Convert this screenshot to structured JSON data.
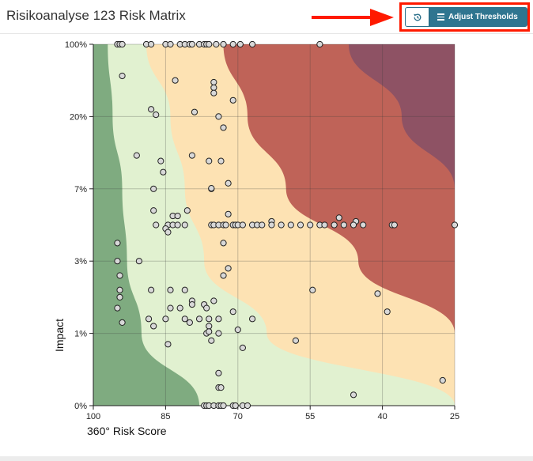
{
  "header": {
    "title": "Risikoanalyse 123 Risk Matrix",
    "history_icon": "history-icon",
    "adjust_label": "Adjust Thresholds",
    "adjust_icon": "sliders-icon"
  },
  "colors": {
    "zone_1": "#7fab80",
    "zone_2": "#e1f1d0",
    "zone_3": "#fde2b3",
    "zone_4": "#bf6358",
    "zone_5": "#8e5264",
    "point_fill": "#d8d8d8",
    "accent": "#2f7590",
    "callout": "#ff1a00"
  },
  "chart_data": {
    "type": "scatter",
    "xlabel": "360° Risk Score",
    "ylabel": "Impact",
    "xlim": [
      100,
      25
    ],
    "x_reversed": true,
    "xticks": [
      100,
      85,
      70,
      55,
      40,
      25
    ],
    "yticks": [
      "0%",
      "1%",
      "3%",
      "7%",
      "20%",
      "100%"
    ],
    "y_scale": "categorical bands",
    "grid": true,
    "zone_boundaries_risk_score_at_impact": {
      "impact_levels": [
        "0%",
        "1%",
        "3%",
        "7%",
        "20%",
        "100%"
      ],
      "zone_1_2": [
        78,
        90,
        93,
        94,
        96,
        97
      ],
      "zone_2_3": [
        25,
        64,
        77,
        81,
        84,
        89
      ],
      "zone_3_4": [
        25,
        25,
        45,
        60,
        68,
        73
      ],
      "zone_4_5": [
        25,
        25,
        25,
        25,
        36,
        47
      ]
    },
    "points": [
      {
        "x": 95,
        "y": "100%"
      },
      {
        "x": 94.5,
        "y": "100%"
      },
      {
        "x": 94,
        "y": "100%"
      },
      {
        "x": 89,
        "y": "100%"
      },
      {
        "x": 88,
        "y": "100%"
      },
      {
        "x": 85,
        "y": "100%"
      },
      {
        "x": 84,
        "y": "100%"
      },
      {
        "x": 82,
        "y": "100%"
      },
      {
        "x": 81,
        "y": "100%"
      },
      {
        "x": 80,
        "y": "100%"
      },
      {
        "x": 79.5,
        "y": "100%"
      },
      {
        "x": 78,
        "y": "100%"
      },
      {
        "x": 77,
        "y": "100%"
      },
      {
        "x": 76.5,
        "y": "100%"
      },
      {
        "x": 76,
        "y": "100%"
      },
      {
        "x": 74.5,
        "y": "100%"
      },
      {
        "x": 73,
        "y": "100%"
      },
      {
        "x": 71,
        "y": "100%"
      },
      {
        "x": 69.5,
        "y": "100%"
      },
      {
        "x": 67,
        "y": "100%"
      },
      {
        "x": 53,
        "y": "100%"
      },
      {
        "x": 94,
        "y": "65%"
      },
      {
        "x": 83,
        "y": "60%"
      },
      {
        "x": 75,
        "y": "58%"
      },
      {
        "x": 75,
        "y": "52%"
      },
      {
        "x": 75,
        "y": "46%"
      },
      {
        "x": 71,
        "y": "38%"
      },
      {
        "x": 88,
        "y": "28%"
      },
      {
        "x": 87,
        "y": "22%"
      },
      {
        "x": 79,
        "y": "25%"
      },
      {
        "x": 74,
        "y": "20%"
      },
      {
        "x": 73,
        "y": "18%"
      },
      {
        "x": 91,
        "y": "13%"
      },
      {
        "x": 86,
        "y": "12%"
      },
      {
        "x": 85.5,
        "y": "10%"
      },
      {
        "x": 79.5,
        "y": "13%"
      },
      {
        "x": 76,
        "y": "12%"
      },
      {
        "x": 73.5,
        "y": "12%"
      },
      {
        "x": 72,
        "y": "8%"
      },
      {
        "x": 95,
        "y": "4%"
      },
      {
        "x": 94.5,
        "y": "2%"
      },
      {
        "x": 75.5,
        "y": "5%"
      },
      {
        "x": 94,
        "y": "-15%"
      },
      {
        "x": 87.5,
        "y": "-10%"
      },
      {
        "x": 84,
        "y": "-35%"
      },
      {
        "x": 79.5,
        "y": "-45%"
      },
      {
        "x": 75,
        "y": "-45%"
      },
      {
        "x": 81,
        "y": "-60%"
      },
      {
        "x": 87.5,
        "y": "7%"
      },
      {
        "x": 75.5,
        "y": "7%"
      },
      {
        "x": 75.5,
        "y": "7.1%"
      },
      {
        "x": 87.5,
        "y": "5.8%"
      },
      {
        "x": 80.5,
        "y": "5.8%"
      },
      {
        "x": 72,
        "y": "5.6%"
      },
      {
        "x": 63,
        "y": "5.2%"
      },
      {
        "x": 45.5,
        "y": "5.2%"
      },
      {
        "x": 83.5,
        "y": "5.5%"
      },
      {
        "x": 82.5,
        "y": "5.5%"
      },
      {
        "x": 49,
        "y": "5.4%"
      },
      {
        "x": 87,
        "y": "5%"
      },
      {
        "x": 84.5,
        "y": "5%"
      },
      {
        "x": 83.5,
        "y": "5%"
      },
      {
        "x": 82.5,
        "y": "5%"
      },
      {
        "x": 81,
        "y": "5%"
      },
      {
        "x": 75,
        "y": "5%"
      },
      {
        "x": 74,
        "y": "5%"
      },
      {
        "x": 73,
        "y": "5%"
      },
      {
        "x": 72.5,
        "y": "5%"
      },
      {
        "x": 71,
        "y": "5%"
      },
      {
        "x": 70.5,
        "y": "5%"
      },
      {
        "x": 70,
        "y": "5%"
      },
      {
        "x": 69,
        "y": "5%"
      },
      {
        "x": 67,
        "y": "5%"
      },
      {
        "x": 66,
        "y": "5%"
      },
      {
        "x": 65,
        "y": "5%"
      },
      {
        "x": 63,
        "y": "5%"
      },
      {
        "x": 61,
        "y": "5%"
      },
      {
        "x": 59,
        "y": "5%"
      },
      {
        "x": 57,
        "y": "5%"
      },
      {
        "x": 55,
        "y": "5%"
      },
      {
        "x": 53,
        "y": "5%"
      },
      {
        "x": 52,
        "y": "5%"
      },
      {
        "x": 50,
        "y": "5%"
      },
      {
        "x": 48,
        "y": "5%"
      },
      {
        "x": 46,
        "y": "5%"
      },
      {
        "x": 44,
        "y": "5%"
      },
      {
        "x": 38,
        "y": "5%"
      },
      {
        "x": 37.5,
        "y": "5%"
      },
      {
        "x": 25,
        "y": "5%"
      },
      {
        "x": 85,
        "y": "4.8%"
      },
      {
        "x": 84.5,
        "y": "4.6%"
      },
      {
        "x": 73,
        "y": "4%"
      },
      {
        "x": 95,
        "y": "3%"
      },
      {
        "x": 90.5,
        "y": "3%"
      },
      {
        "x": 72,
        "y": "2.8%"
      },
      {
        "x": 73,
        "y": "2.6%"
      },
      {
        "x": 94.5,
        "y": "2.6%"
      },
      {
        "x": 94.5,
        "y": "2.2%"
      },
      {
        "x": 88,
        "y": "2.2%"
      },
      {
        "x": 84,
        "y": "2.2%"
      },
      {
        "x": 54.5,
        "y": "2.2%"
      },
      {
        "x": 41,
        "y": "2.1%"
      },
      {
        "x": 95,
        "y": "1.7%"
      },
      {
        "x": 82,
        "y": "1.7%"
      },
      {
        "x": 79.5,
        "y": "1.8%"
      },
      {
        "x": 77,
        "y": "1.8%"
      },
      {
        "x": 76.5,
        "y": "1.7%"
      },
      {
        "x": 71,
        "y": "1.6%"
      },
      {
        "x": 39,
        "y": "1.6%"
      },
      {
        "x": 88.5,
        "y": "1.4%"
      },
      {
        "x": 85,
        "y": "1.4%"
      },
      {
        "x": 81,
        "y": "1.4%"
      },
      {
        "x": 78,
        "y": "1.4%"
      },
      {
        "x": 76,
        "y": "1.4%"
      },
      {
        "x": 74,
        "y": "1.4%"
      },
      {
        "x": 67,
        "y": "1.4%"
      },
      {
        "x": 80,
        "y": "1.3%"
      },
      {
        "x": 76,
        "y": "1.2%"
      },
      {
        "x": 70,
        "y": "1.1%"
      },
      {
        "x": 74,
        "y": "1%"
      },
      {
        "x": 76.5,
        "y": "1%"
      },
      {
        "x": 76,
        "y": "1.05%"
      },
      {
        "x": 58,
        "y": "0.9%"
      },
      {
        "x": 84.5,
        "y": "0.85%"
      },
      {
        "x": 69,
        "y": "0.8%"
      },
      {
        "x": 75.5,
        "y": "0.9%"
      },
      {
        "x": 74,
        "y": "0.45%"
      },
      {
        "x": 27.5,
        "y": "0.35%"
      },
      {
        "x": 74,
        "y": "0.25%"
      },
      {
        "x": 73.5,
        "y": "0.25%"
      },
      {
        "x": 46,
        "y": "0.15%"
      },
      {
        "x": 77,
        "y": "0%"
      },
      {
        "x": 76.5,
        "y": "0%"
      },
      {
        "x": 76,
        "y": "0%"
      },
      {
        "x": 75,
        "y": "0%"
      },
      {
        "x": 74,
        "y": "0%"
      },
      {
        "x": 73.5,
        "y": "0%"
      },
      {
        "x": 73,
        "y": "0%"
      },
      {
        "x": 71,
        "y": "0%"
      },
      {
        "x": 70.5,
        "y": "0%"
      },
      {
        "x": 69,
        "y": "0%"
      },
      {
        "x": 68,
        "y": "0%"
      }
    ]
  }
}
